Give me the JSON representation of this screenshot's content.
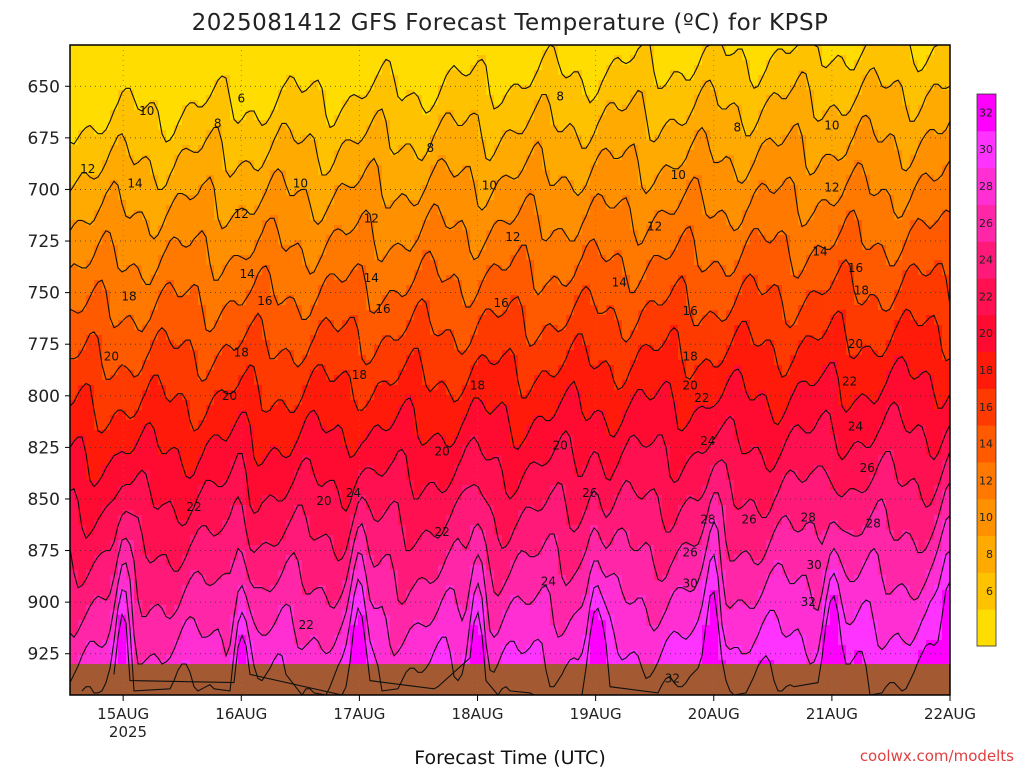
{
  "title": "2025081412 GFS Forecast Temperature (ºC) for KPSP",
  "xlabel": "Forecast Time (UTC)",
  "credit": "coolwx.com/modelts",
  "year_label": "2025",
  "chart_data": {
    "type": "heatmap",
    "y_ticks": [
      650,
      675,
      700,
      725,
      750,
      775,
      800,
      825,
      850,
      875,
      900,
      925
    ],
    "y_range": [
      630,
      945
    ],
    "x_ticks": [
      "15AUG",
      "16AUG",
      "17AUG",
      "18AUG",
      "19AUG",
      "20AUG",
      "21AUG",
      "22AUG"
    ],
    "colorbar": {
      "levels": [
        6,
        8,
        10,
        12,
        14,
        16,
        18,
        20,
        22,
        24,
        26,
        28,
        30,
        32
      ],
      "colors": [
        "#ffdd00",
        "#ffc200",
        "#ffaa00",
        "#ff9000",
        "#ff7800",
        "#ff5a00",
        "#ff3a00",
        "#ff1a0a",
        "#ff0a30",
        "#ff1050",
        "#ff1a7a",
        "#ff26a8",
        "#ff2fd4",
        "#ff33ff",
        "#ff00ff"
      ]
    },
    "contour_labels": [
      {
        "text": "6",
        "day": 1.0,
        "p": 656
      },
      {
        "text": "8",
        "day": 3.7,
        "p": 655
      },
      {
        "text": "8",
        "day": 5.2,
        "p": 670
      },
      {
        "text": "8",
        "day": 0.8,
        "p": 668
      },
      {
        "text": "8",
        "day": 2.6,
        "p": 680
      },
      {
        "text": "10",
        "day": 0.2,
        "p": 662
      },
      {
        "text": "10",
        "day": 1.5,
        "p": 697
      },
      {
        "text": "10",
        "day": 3.1,
        "p": 698
      },
      {
        "text": "10",
        "day": 4.7,
        "p": 693
      },
      {
        "text": "10",
        "day": 6.0,
        "p": 669
      },
      {
        "text": "12",
        "day": -0.3,
        "p": 690
      },
      {
        "text": "12",
        "day": 1.0,
        "p": 712
      },
      {
        "text": "12",
        "day": 2.1,
        "p": 714
      },
      {
        "text": "12",
        "day": 3.3,
        "p": 723
      },
      {
        "text": "12",
        "day": 4.5,
        "p": 718
      },
      {
        "text": "12",
        "day": 6.0,
        "p": 699
      },
      {
        "text": "14",
        "day": 0.1,
        "p": 697
      },
      {
        "text": "14",
        "day": 1.05,
        "p": 741
      },
      {
        "text": "14",
        "day": 2.1,
        "p": 743
      },
      {
        "text": "14",
        "day": 4.2,
        "p": 745
      },
      {
        "text": "14",
        "day": 5.9,
        "p": 730
      },
      {
        "text": "16",
        "day": 1.2,
        "p": 754
      },
      {
        "text": "16",
        "day": 2.2,
        "p": 758
      },
      {
        "text": "16",
        "day": 3.2,
        "p": 755
      },
      {
        "text": "16",
        "day": 4.8,
        "p": 759
      },
      {
        "text": "16",
        "day": 6.2,
        "p": 738
      },
      {
        "text": "18",
        "day": 0.05,
        "p": 752
      },
      {
        "text": "18",
        "day": 1.0,
        "p": 779
      },
      {
        "text": "18",
        "day": 2.0,
        "p": 790
      },
      {
        "text": "18",
        "day": 3.0,
        "p": 795
      },
      {
        "text": "18",
        "day": 4.8,
        "p": 781
      },
      {
        "text": "18",
        "day": 6.25,
        "p": 749
      },
      {
        "text": "20",
        "day": -0.1,
        "p": 781
      },
      {
        "text": "20",
        "day": 0.9,
        "p": 800
      },
      {
        "text": "20",
        "day": 1.7,
        "p": 851
      },
      {
        "text": "20",
        "day": 2.7,
        "p": 827
      },
      {
        "text": "20",
        "day": 3.7,
        "p": 824
      },
      {
        "text": "20",
        "day": 4.8,
        "p": 795
      },
      {
        "text": "20",
        "day": 6.2,
        "p": 775
      },
      {
        "text": "22",
        "day": 0.6,
        "p": 854
      },
      {
        "text": "22",
        "day": 1.55,
        "p": 911
      },
      {
        "text": "22",
        "day": 2.7,
        "p": 866
      },
      {
        "text": "22",
        "day": 4.9,
        "p": 801
      },
      {
        "text": "22",
        "day": 6.15,
        "p": 793
      },
      {
        "text": "24",
        "day": 1.95,
        "p": 847
      },
      {
        "text": "24",
        "day": 3.6,
        "p": 890
      },
      {
        "text": "24",
        "day": 4.95,
        "p": 822
      },
      {
        "text": "24",
        "day": 6.2,
        "p": 815
      },
      {
        "text": "26",
        "day": 3.95,
        "p": 847
      },
      {
        "text": "26",
        "day": 4.8,
        "p": 876
      },
      {
        "text": "26",
        "day": 5.3,
        "p": 860
      },
      {
        "text": "26",
        "day": 6.3,
        "p": 835
      },
      {
        "text": "28",
        "day": 4.95,
        "p": 860
      },
      {
        "text": "28",
        "day": 5.8,
        "p": 859
      },
      {
        "text": "28",
        "day": 6.35,
        "p": 862
      },
      {
        "text": "30",
        "day": 4.8,
        "p": 891
      },
      {
        "text": "30",
        "day": 5.85,
        "p": 882
      },
      {
        "text": "32",
        "day": 5.8,
        "p": 900
      },
      {
        "text": "32",
        "day": 4.65,
        "p": 937
      }
    ]
  }
}
